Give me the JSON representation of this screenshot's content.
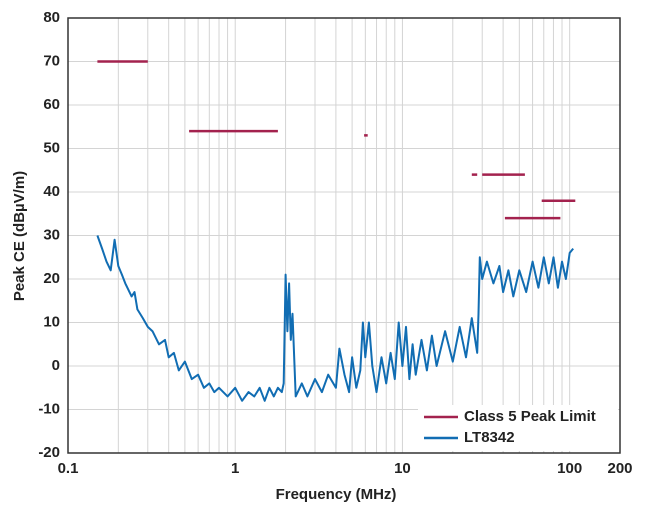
{
  "chart_data": {
    "type": "line",
    "xlabel": "Frequency (MHz)",
    "ylabel": "Peak CE (dBµV/m)",
    "xscale": "log",
    "xlim": [
      0.1,
      200
    ],
    "xticks": [
      0.1,
      1,
      10,
      100,
      200
    ],
    "xminorticks": [
      0.2,
      0.3,
      0.4,
      0.5,
      0.6,
      0.7,
      0.8,
      0.9,
      2,
      3,
      4,
      5,
      6,
      7,
      8,
      9,
      20,
      30,
      40,
      50,
      60,
      70,
      80,
      90
    ],
    "ylim": [
      -20,
      80
    ],
    "yticks": [
      -20,
      -10,
      0,
      10,
      20,
      30,
      40,
      50,
      60,
      70,
      80
    ],
    "grid": true,
    "legend": "lower right",
    "series": [
      {
        "name": "Class 5 Peak Limit",
        "color": "#a3224e",
        "x": [
          0.15,
          0.3,
          null,
          0.53,
          1.8,
          null,
          5.9,
          6.2,
          null,
          26,
          28,
          null,
          30,
          54,
          null,
          68,
          108,
          null,
          41,
          88
        ],
        "values": [
          70,
          70,
          null,
          54,
          54,
          null,
          53,
          53,
          null,
          44,
          44,
          null,
          44,
          44,
          null,
          38,
          38,
          null,
          34,
          34
        ]
      },
      {
        "name": "LT8342",
        "color": "#116db3",
        "x": [
          0.15,
          0.16,
          0.17,
          0.18,
          0.19,
          0.2,
          0.21,
          0.22,
          0.24,
          0.25,
          0.26,
          0.28,
          0.3,
          0.32,
          0.35,
          0.38,
          0.4,
          0.43,
          0.46,
          0.5,
          0.55,
          0.6,
          0.65,
          0.7,
          0.75,
          0.8,
          0.9,
          1,
          1.1,
          1.2,
          1.3,
          1.4,
          1.5,
          1.6,
          1.7,
          1.8,
          1.9,
          1.95,
          2,
          2.05,
          2.1,
          2.15,
          2.2,
          2.3,
          2.5,
          2.7,
          3,
          3.3,
          3.6,
          4,
          4.2,
          4.5,
          4.8,
          5,
          5.3,
          5.6,
          5.8,
          6,
          6.3,
          6.6,
          7,
          7.5,
          8,
          8.5,
          9,
          9.5,
          10,
          10.5,
          11,
          11.5,
          12,
          13,
          14,
          15,
          16,
          18,
          20,
          22,
          24,
          26,
          28,
          28.5,
          29,
          30,
          32,
          35,
          38,
          40,
          43,
          46,
          50,
          55,
          60,
          65,
          70,
          75,
          80,
          85,
          90,
          95,
          100,
          105
        ],
        "values": [
          30,
          27,
          24,
          22,
          29,
          23,
          21,
          19,
          16,
          17,
          13,
          11,
          9,
          8,
          5,
          6,
          2,
          3,
          -1,
          1,
          -3,
          -2,
          -5,
          -4,
          -6,
          -5,
          -7,
          -5,
          -8,
          -6,
          -7,
          -5,
          -8,
          -5,
          -7,
          -5,
          -6,
          -4,
          21,
          8,
          19,
          6,
          12,
          -7,
          -4,
          -7,
          -3,
          -6,
          -2,
          -5,
          4,
          -2,
          -6,
          2,
          -5,
          -1,
          10,
          2,
          10,
          0,
          -6,
          2,
          -4,
          3,
          -3,
          10,
          0,
          9,
          -3,
          5,
          -2,
          6,
          -1,
          7,
          0,
          8,
          1,
          9,
          2,
          11,
          3,
          12,
          25,
          20,
          24,
          19,
          23,
          17,
          22,
          16,
          22,
          17,
          24,
          18,
          25,
          19,
          25,
          18,
          24,
          20,
          26,
          27
        ]
      }
    ]
  }
}
